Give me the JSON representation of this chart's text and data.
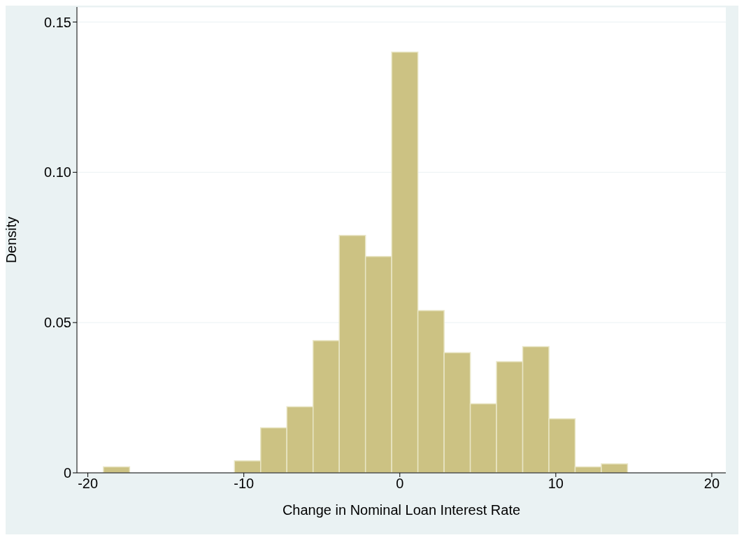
{
  "chart_data": {
    "type": "histogram",
    "xlabel": "Change in Nominal Loan Interest Rate",
    "ylabel": "Density",
    "bins": [
      -19.0,
      -17.32,
      -15.64,
      -13.96,
      -12.28,
      -10.6,
      -8.92,
      -7.24,
      -5.56,
      -3.88,
      -2.2,
      -0.52,
      1.16,
      2.84,
      4.52,
      6.2,
      7.88,
      9.56,
      11.24,
      12.92,
      14.6
    ],
    "values": [
      0.002,
      0,
      0,
      0,
      0,
      0.004,
      0.015,
      0.022,
      0.044,
      0.079,
      0.072,
      0.14,
      0.054,
      0.04,
      0.023,
      0.037,
      0.042,
      0.018,
      0.002,
      0.003
    ],
    "color": "#ccc283",
    "xlim": [
      -20.7,
      20.9
    ],
    "xticks": [
      -20,
      -10,
      0,
      10,
      20
    ],
    "ylim": [
      0,
      0.155
    ],
    "yticks": [
      0,
      {
        "value": 0.05,
        "label": "0.05"
      },
      {
        "value": 0.1,
        "label": "0.10"
      },
      {
        "value": 0.15,
        "label": "0.15"
      }
    ],
    "grid": "y"
  }
}
